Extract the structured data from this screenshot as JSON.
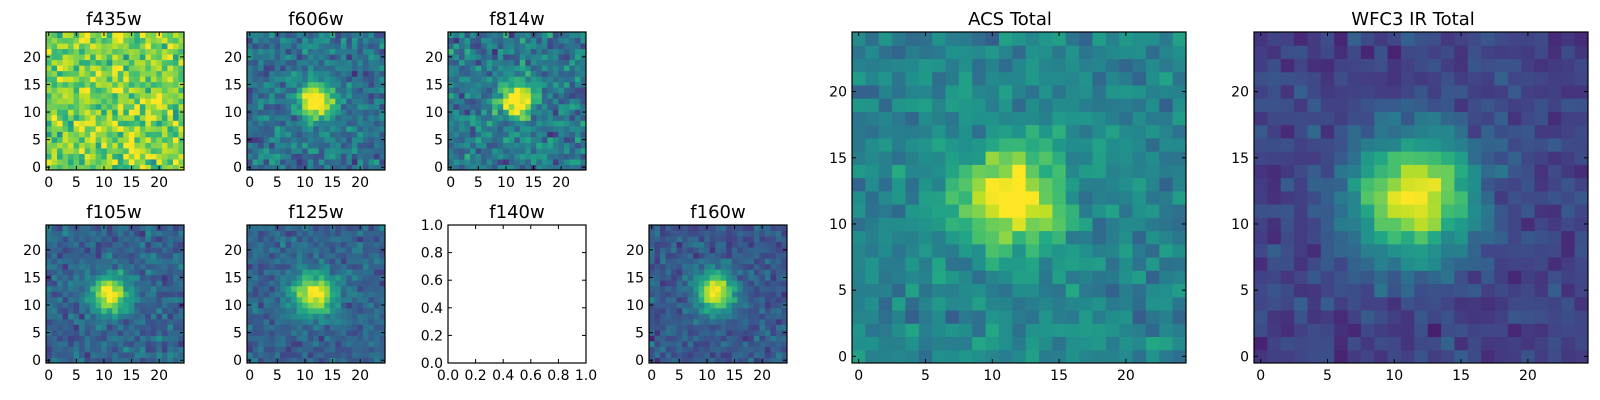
{
  "figure": {
    "colormap": "viridis",
    "frame_color": "#000000",
    "background": "#ffffff"
  },
  "chart_data": [
    {
      "type": "heatmap",
      "title": "f435w",
      "grid_size": 25,
      "xticks": [
        0,
        5,
        10,
        15,
        20
      ],
      "yticks": [
        0,
        5,
        10,
        15,
        20
      ],
      "xlim": [
        0,
        24
      ],
      "ylim": [
        0,
        24
      ],
      "source_peak": [
        12,
        12
      ],
      "source_sigma": 3.2,
      "source_amplitude": 0.0,
      "background_level": 0.8,
      "noise_level": 0.15,
      "grid": false,
      "legend": "none"
    },
    {
      "type": "heatmap",
      "title": "f606w",
      "grid_size": 25,
      "xticks": [
        0,
        5,
        10,
        15,
        20
      ],
      "yticks": [
        0,
        5,
        10,
        15,
        20
      ],
      "xlim": [
        0,
        24
      ],
      "ylim": [
        0,
        24
      ],
      "source_peak": [
        12,
        12
      ],
      "source_sigma": 2.2,
      "source_amplitude": 0.75,
      "background_level": 0.38,
      "noise_level": 0.12,
      "grid": false,
      "legend": "none"
    },
    {
      "type": "heatmap",
      "title": "f814w",
      "grid_size": 25,
      "xticks": [
        0,
        5,
        10,
        15,
        20
      ],
      "yticks": [
        0,
        5,
        10,
        15,
        20
      ],
      "xlim": [
        0,
        24
      ],
      "ylim": [
        0,
        24
      ],
      "source_peak": [
        12,
        12
      ],
      "source_sigma": 2.2,
      "source_amplitude": 0.75,
      "background_level": 0.4,
      "noise_level": 0.13,
      "grid": false,
      "legend": "none"
    },
    {
      "type": "heatmap",
      "title": "f105w",
      "grid_size": 25,
      "xticks": [
        0,
        5,
        10,
        15,
        20
      ],
      "yticks": [
        0,
        5,
        10,
        15,
        20
      ],
      "xlim": [
        0,
        24
      ],
      "ylim": [
        0,
        24
      ],
      "source_peak": [
        11,
        12
      ],
      "source_sigma": 2.4,
      "source_amplitude": 0.72,
      "background_level": 0.32,
      "noise_level": 0.09,
      "grid": false,
      "legend": "none"
    },
    {
      "type": "heatmap",
      "title": "f125w",
      "grid_size": 25,
      "xticks": [
        0,
        5,
        10,
        15,
        20
      ],
      "yticks": [
        0,
        5,
        10,
        15,
        20
      ],
      "xlim": [
        0,
        24
      ],
      "ylim": [
        0,
        24
      ],
      "source_peak": [
        11.5,
        12
      ],
      "source_sigma": 2.6,
      "source_amplitude": 0.72,
      "background_level": 0.32,
      "noise_level": 0.08,
      "grid": false,
      "legend": "none"
    },
    {
      "type": "empty",
      "title": "f140w",
      "xticks": [
        "0.0",
        "0.2",
        "0.4",
        "0.6",
        "0.8",
        "1.0"
      ],
      "yticks": [
        "0.0",
        "0.2",
        "0.4",
        "0.6",
        "0.8",
        "1.0"
      ],
      "xlim": [
        0,
        1
      ],
      "ylim": [
        0,
        1
      ],
      "grid": false,
      "legend": "none"
    },
    {
      "type": "heatmap",
      "title": "f160w",
      "grid_size": 25,
      "xticks": [
        0,
        5,
        10,
        15,
        20
      ],
      "yticks": [
        0,
        5,
        10,
        15,
        20
      ],
      "xlim": [
        0,
        24
      ],
      "ylim": [
        0,
        24
      ],
      "source_peak": [
        11.5,
        12.5
      ],
      "source_sigma": 2.4,
      "source_amplitude": 0.75,
      "background_level": 0.28,
      "noise_level": 0.08,
      "grid": false,
      "legend": "none"
    },
    {
      "type": "heatmap",
      "title": "ACS Total",
      "grid_size": 25,
      "xticks": [
        0,
        5,
        10,
        15,
        20
      ],
      "yticks": [
        0,
        5,
        10,
        15,
        20
      ],
      "xlim": [
        0,
        24
      ],
      "ylim": [
        0,
        24
      ],
      "source_peak": [
        11.5,
        12
      ],
      "source_sigma": 2.6,
      "source_amplitude": 0.6,
      "background_level": 0.45,
      "noise_level": 0.08,
      "grid": false,
      "legend": "none"
    },
    {
      "type": "heatmap",
      "title": "WFC3 IR Total",
      "grid_size": 25,
      "xticks": [
        0,
        5,
        10,
        15,
        20
      ],
      "yticks": [
        0,
        5,
        10,
        15,
        20
      ],
      "xlim": [
        0,
        24
      ],
      "ylim": [
        0,
        24
      ],
      "source_peak": [
        11.5,
        12
      ],
      "source_sigma": 3.2,
      "source_amplitude": 0.78,
      "background_level": 0.2,
      "noise_level": 0.06,
      "grid": false,
      "legend": "none"
    }
  ]
}
